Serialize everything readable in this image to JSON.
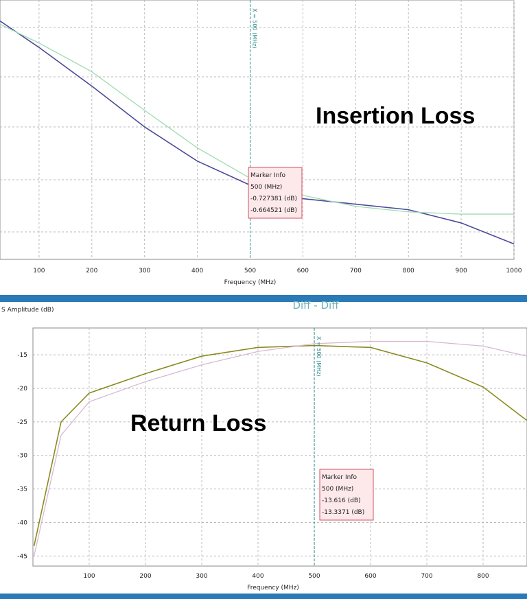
{
  "chart_data": [
    {
      "type": "line",
      "annotation": "Insertion Loss",
      "xlabel": "Frequency (MHz)",
      "xlim": [
        26,
        1000
      ],
      "ylim": [
        -1.4,
        0.95
      ],
      "xticks": [
        100,
        200,
        300,
        400,
        500,
        600,
        700,
        800,
        900,
        1000
      ],
      "x": [
        26,
        100,
        200,
        300,
        400,
        500,
        600,
        700,
        800,
        900,
        1000
      ],
      "series": [
        {
          "color": "#4a4a9a",
          "values": [
            0.76,
            0.52,
            0.17,
            -0.2,
            -0.51,
            -0.727381,
            -0.85,
            -0.9,
            -0.95,
            -1.07,
            -1.26
          ]
        },
        {
          "color": "#9edcb0",
          "values": [
            0.73,
            0.56,
            0.3,
            -0.05,
            -0.39,
            -0.664521,
            -0.82,
            -0.92,
            -0.97,
            -0.99,
            -0.99
          ]
        }
      ],
      "marker_x": 500,
      "marker_label": "X = 500 (MHz)",
      "marker_info": [
        "Marker Info",
        "500 (MHz)",
        "-0.727381 (dB)",
        "-0.664521 (dB)"
      ]
    },
    {
      "type": "line",
      "title": "Diff - Diff",
      "annotation": "Return Loss",
      "xlabel": "Frequency (MHz)",
      "ylabel": "S Amplitude (dB)",
      "xlim": [
        0,
        878
      ],
      "ylim": [
        -46.5,
        -11
      ],
      "xticks": [
        100,
        200,
        300,
        400,
        500,
        600,
        700,
        800
      ],
      "yticks": [
        -15,
        -20,
        -25,
        -30,
        -35,
        -40,
        -45
      ],
      "x": [
        2,
        50,
        100,
        200,
        300,
        400,
        500,
        600,
        700,
        800,
        878
      ],
      "series": [
        {
          "color": "#8a8a20",
          "values": [
            -43.5,
            -25,
            -20.7,
            -17.8,
            -15.2,
            -13.9,
            -13.616,
            -13.9,
            -16.2,
            -19.8,
            -24.8
          ]
        },
        {
          "color": "#d8b8d0",
          "values": [
            -45,
            -27,
            -22,
            -19,
            -16.5,
            -14.5,
            -13.3371,
            -13.0,
            -13.0,
            -13.7,
            -15.2
          ]
        }
      ],
      "marker_x": 500,
      "marker_label": "X = 500 (MHz)",
      "marker_info": [
        "Marker Info",
        "500 (MHz)",
        "-13.616 (dB)",
        "-13.3371 (dB)"
      ]
    }
  ]
}
